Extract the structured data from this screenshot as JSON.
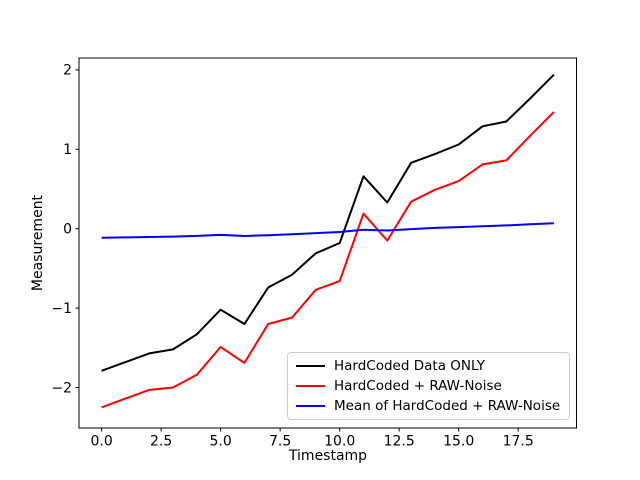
{
  "chart_data": {
    "type": "line",
    "title": "",
    "xlabel": "Timestamp",
    "ylabel": "Measurement",
    "grid": false,
    "legend_position": "lower right",
    "xlim": [
      -0.95,
      19.95
    ],
    "ylim": [
      -2.51,
      2.15
    ],
    "x": [
      0,
      1,
      2,
      3,
      4,
      5,
      6,
      7,
      8,
      9,
      10,
      11,
      12,
      13,
      14,
      15,
      16,
      17,
      18,
      19
    ],
    "x_ticks": {
      "values": [
        0,
        2.5,
        5,
        7.5,
        10,
        12.5,
        15,
        17.5
      ],
      "labels": [
        "0.0",
        "2.5",
        "5.0",
        "7.5",
        "10.0",
        "12.5",
        "15.0",
        "17.5"
      ]
    },
    "y_ticks": {
      "values": [
        -2,
        -1,
        0,
        1,
        2
      ],
      "labels": [
        "−2",
        "−1",
        "0",
        "1",
        "2"
      ]
    },
    "series": [
      {
        "name": "HardCoded Data ONLY",
        "color": "#000000",
        "values": [
          -1.79,
          -1.68,
          -1.57,
          -1.52,
          -1.33,
          -1.02,
          -1.2,
          -0.74,
          -0.58,
          -0.31,
          -0.18,
          0.66,
          0.33,
          0.83,
          0.94,
          1.06,
          1.29,
          1.35,
          1.64,
          1.94
        ]
      },
      {
        "name": "HardCoded + RAW-Noise",
        "color": "#ff0000",
        "values": [
          -2.25,
          -2.14,
          -2.03,
          -2.0,
          -1.84,
          -1.49,
          -1.69,
          -1.2,
          -1.12,
          -0.77,
          -0.66,
          0.19,
          -0.15,
          0.34,
          0.49,
          0.6,
          0.81,
          0.86,
          1.17,
          1.47
        ]
      },
      {
        "name": "Mean of HardCoded + RAW-Noise",
        "color": "#0000ff",
        "values": [
          -0.115,
          -0.11,
          -0.105,
          -0.1,
          -0.09,
          -0.078,
          -0.092,
          -0.082,
          -0.07,
          -0.055,
          -0.042,
          -0.012,
          -0.022,
          -0.005,
          0.01,
          0.02,
          0.032,
          0.042,
          0.056,
          0.07
        ]
      }
    ]
  }
}
